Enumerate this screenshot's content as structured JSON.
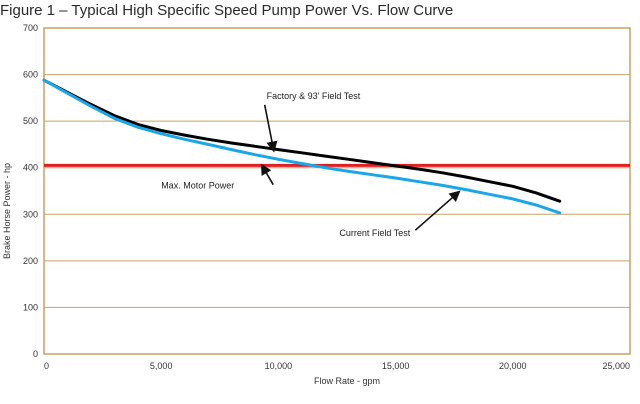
{
  "chart_data": {
    "type": "line",
    "title": "Figure 1 – Typical High Specific Speed Pump Power Vs. Flow Curve",
    "xlabel": "Flow Rate - gpm",
    "ylabel": "Brake Horse Power - hp",
    "xlim": [
      0,
      25000
    ],
    "ylim": [
      0,
      700
    ],
    "xticks": [
      0,
      5000,
      10000,
      15000,
      20000,
      25000
    ],
    "xtick_labels": [
      "0",
      "5,000",
      "10,000",
      "15,000",
      "20,000",
      "25,000"
    ],
    "yticks": [
      0,
      100,
      200,
      300,
      400,
      500,
      600,
      700
    ],
    "ytick_labels": [
      "0",
      "100",
      "200",
      "300",
      "400",
      "500",
      "600",
      "700"
    ],
    "grid": true,
    "series": [
      {
        "name": "Factory & 93' Field Test",
        "color": "#000000",
        "x": [
          0,
          1000,
          2000,
          3000,
          4000,
          5000,
          6000,
          7000,
          8000,
          9000,
          10000,
          11000,
          12000,
          13000,
          14000,
          15000,
          16000,
          17000,
          18000,
          19000,
          20000,
          21000,
          22000
        ],
        "y": [
          588,
          562,
          536,
          512,
          493,
          480,
          470,
          461,
          453,
          446,
          439,
          432,
          425,
          418,
          411,
          404,
          397,
          389,
          380,
          370,
          360,
          346,
          328
        ]
      },
      {
        "name": "Current Field Test",
        "color": "#1aa7e8",
        "x": [
          0,
          1000,
          2000,
          3000,
          4000,
          5000,
          6000,
          7000,
          8000,
          9000,
          10000,
          11000,
          12000,
          13000,
          14000,
          15000,
          16000,
          17000,
          18000,
          19000,
          20000,
          21000,
          22000
        ],
        "y": [
          588,
          560,
          532,
          506,
          487,
          473,
          461,
          450,
          439,
          428,
          418,
          409,
          400,
          392,
          385,
          378,
          370,
          362,
          353,
          343,
          333,
          320,
          303
        ]
      }
    ],
    "reference_lines": [
      {
        "name": "Max. Motor Power",
        "y": 405,
        "color": "#e02020"
      }
    ],
    "annotations": [
      {
        "text": "Factory & 93' Field Test",
        "x": 9500,
        "y": 548,
        "arrow_to": [
          9800,
          437
        ]
      },
      {
        "text": "Max. Motor Power",
        "x": 5000,
        "y": 355,
        "arrow_to": [
          9300,
          405
        ]
      },
      {
        "text": "Current Field Test",
        "x": 12600,
        "y": 253,
        "arrow_to": [
          17700,
          348
        ]
      }
    ],
    "colors": {
      "background": "#ffffff",
      "frame": "#c8a264",
      "grid": "#c8a264"
    }
  }
}
